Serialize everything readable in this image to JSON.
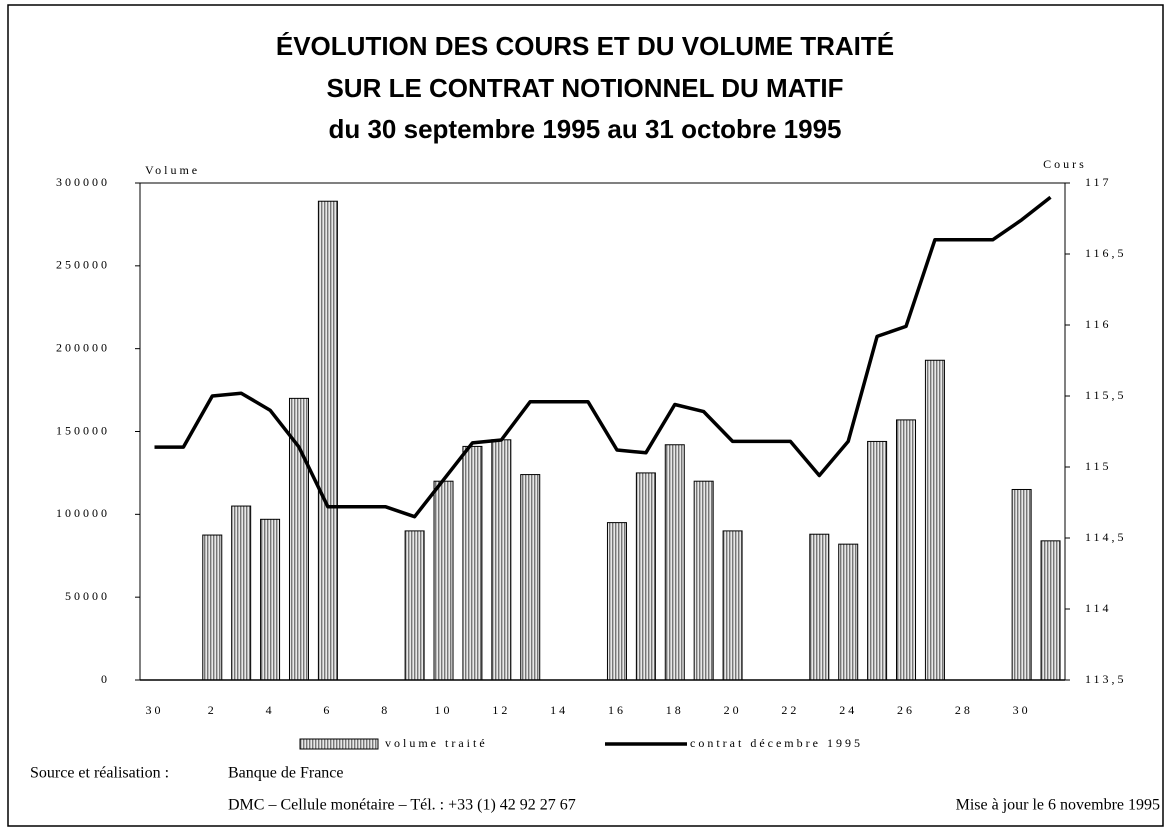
{
  "chart_data": {
    "type": "bar",
    "title": [
      "ÉVOLUTION DES COURS ET DU VOLUME TRAITÉ",
      "SUR LE CONTRAT NOTIONNEL DU MATIF",
      "du 30 septembre 1995 au 31 octobre 1995"
    ],
    "y_label": "Volume",
    "y2_label": "Cours",
    "categories": [
      "30",
      null,
      "2",
      null,
      "4",
      null,
      "6",
      null,
      "8",
      null,
      "10",
      null,
      "12",
      null,
      "14",
      null,
      "16",
      null,
      "18",
      null,
      "20",
      null,
      "22",
      null,
      "24",
      null,
      "26",
      null,
      "28",
      null,
      "30",
      null
    ],
    "series": [
      {
        "name": "volume traité",
        "type": "bar",
        "color": "#9a9a9a",
        "values": [
          null,
          null,
          87500,
          105000,
          97000,
          170000,
          289000,
          null,
          null,
          90000,
          120000,
          141000,
          145000,
          124000,
          null,
          null,
          95000,
          125000,
          142000,
          120000,
          90000,
          null,
          null,
          88000,
          82000,
          144000,
          157000,
          193000,
          null,
          null,
          115000,
          84000
        ]
      },
      {
        "name": "contrat décembre 1995",
        "type": "line",
        "axis": "y2",
        "color": "#000000",
        "values": [
          115.14,
          115.14,
          115.5,
          115.52,
          115.4,
          115.14,
          114.72,
          114.72,
          114.72,
          114.65,
          114.91,
          115.17,
          115.19,
          115.46,
          115.46,
          115.46,
          115.12,
          115.1,
          115.44,
          115.39,
          115.18,
          115.18,
          115.18,
          114.94,
          115.18,
          115.92,
          115.99,
          116.6,
          116.6,
          116.6,
          116.74,
          116.9
        ]
      }
    ],
    "ylim": [
      0,
      300000
    ],
    "yticks": [
      0,
      50000,
      100000,
      150000,
      200000,
      250000,
      300000
    ],
    "y2lim": [
      113.5,
      117
    ],
    "y2ticks": [
      {
        "value": 113.5,
        "label": "113,5"
      },
      114,
      {
        "value": 114.5,
        "label": "114,5"
      },
      115,
      {
        "value": 115.5,
        "label": "115,5"
      },
      116,
      {
        "value": 116.5,
        "label": "116,5"
      },
      117
    ],
    "footer": {
      "source_label": "Source et réalisation :",
      "source": "Banque de France",
      "contact": "DMC – Cellule monétaire  – Tél. : +33 (1) 42 92 27 67",
      "updated": "Mise à jour le 6 novembre 1995"
    }
  }
}
